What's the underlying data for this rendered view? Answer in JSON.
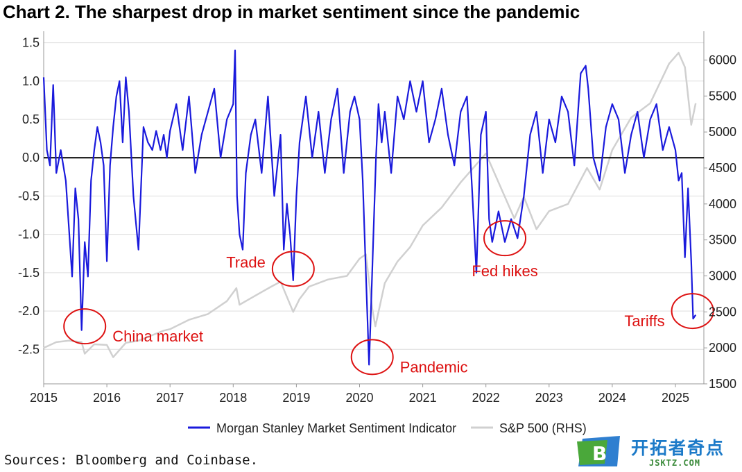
{
  "chart_data": {
    "type": "line",
    "title": "Chart 2. The sharpest drop in market sentiment since the pandemic",
    "x_ticks": [
      "2015",
      "2016",
      "2017",
      "2018",
      "2019",
      "2020",
      "2021",
      "2022",
      "2023",
      "2024",
      "2025"
    ],
    "left_axis": {
      "ticks": [
        "1.5",
        "1.0",
        "0.5",
        "0.0",
        "-0.5",
        "-1.0",
        "-1.5",
        "-2.0",
        "-2.5"
      ],
      "ylim": [
        -2.95,
        1.65
      ]
    },
    "right_axis": {
      "ticks": [
        "6000",
        "5500",
        "5000",
        "4500",
        "4000",
        "3500",
        "3000",
        "2500",
        "2000",
        "1500"
      ],
      "ylim": [
        1500,
        6400
      ]
    },
    "xlim": [
      2015.0,
      2025.45
    ],
    "grid": true,
    "legend_position": "bottom",
    "series": [
      {
        "name": "Morgan Stanley Market Sentiment Indicator",
        "axis": "left",
        "color": "#1a1adc",
        "x": [
          2015.0,
          2015.05,
          2015.1,
          2015.15,
          2015.2,
          2015.27,
          2015.35,
          2015.45,
          2015.5,
          2015.55,
          2015.6,
          2015.65,
          2015.7,
          2015.75,
          2015.8,
          2015.85,
          2015.9,
          2015.95,
          2016.0,
          2016.05,
          2016.1,
          2016.15,
          2016.2,
          2016.25,
          2016.3,
          2016.35,
          2016.42,
          2016.5,
          2016.58,
          2016.65,
          2016.72,
          2016.78,
          2016.85,
          2016.9,
          2016.95,
          2017.0,
          2017.1,
          2017.2,
          2017.3,
          2017.4,
          2017.5,
          2017.6,
          2017.7,
          2017.8,
          2017.9,
          2018.0,
          2018.03,
          2018.06,
          2018.1,
          2018.15,
          2018.2,
          2018.28,
          2018.35,
          2018.45,
          2018.55,
          2018.65,
          2018.75,
          2018.8,
          2018.85,
          2018.9,
          2018.95,
          2019.0,
          2019.05,
          2019.15,
          2019.25,
          2019.35,
          2019.45,
          2019.55,
          2019.65,
          2019.75,
          2019.85,
          2019.92,
          2020.0,
          2020.05,
          2020.1,
          2020.15,
          2020.18,
          2020.22,
          2020.26,
          2020.3,
          2020.35,
          2020.4,
          2020.5,
          2020.6,
          2020.7,
          2020.8,
          2020.9,
          2021.0,
          2021.1,
          2021.2,
          2021.3,
          2021.4,
          2021.5,
          2021.6,
          2021.7,
          2021.78,
          2021.85,
          2021.92,
          2022.0,
          2022.05,
          2022.1,
          2022.2,
          2022.3,
          2022.4,
          2022.5,
          2022.6,
          2022.7,
          2022.8,
          2022.9,
          2023.0,
          2023.1,
          2023.2,
          2023.3,
          2023.4,
          2023.5,
          2023.58,
          2023.62,
          2023.7,
          2023.8,
          2023.9,
          2024.0,
          2024.1,
          2024.2,
          2024.3,
          2024.4,
          2024.5,
          2024.6,
          2024.7,
          2024.8,
          2024.9,
          2025.0,
          2025.05,
          2025.1,
          2025.15,
          2025.2,
          2025.25,
          2025.28,
          2025.32
        ],
        "y": [
          1.05,
          0.1,
          -0.1,
          0.95,
          -0.2,
          0.1,
          -0.3,
          -1.55,
          -0.4,
          -0.8,
          -2.25,
          -1.1,
          -1.55,
          -0.3,
          0.1,
          0.4,
          0.2,
          -0.1,
          -1.35,
          -0.1,
          0.4,
          0.8,
          1.0,
          0.2,
          1.05,
          0.6,
          -0.5,
          -1.2,
          0.4,
          0.2,
          0.1,
          0.35,
          0.1,
          0.3,
          0.0,
          0.35,
          0.7,
          0.1,
          0.8,
          -0.2,
          0.3,
          0.6,
          0.9,
          0.0,
          0.5,
          0.7,
          1.4,
          -0.5,
          -1.0,
          -1.2,
          -0.2,
          0.3,
          0.5,
          -0.2,
          0.8,
          -0.5,
          0.3,
          -1.2,
          -0.6,
          -1.0,
          -1.6,
          -0.5,
          0.2,
          0.8,
          0.0,
          0.6,
          -0.2,
          0.5,
          0.9,
          -0.2,
          0.6,
          0.8,
          0.5,
          -0.3,
          -1.5,
          -2.7,
          -2.0,
          -1.0,
          0.0,
          0.7,
          0.2,
          0.6,
          -0.2,
          0.8,
          0.5,
          1.0,
          0.6,
          1.0,
          0.2,
          0.5,
          0.9,
          0.3,
          -0.1,
          0.6,
          0.8,
          -0.4,
          -1.5,
          0.3,
          0.6,
          -0.8,
          -1.1,
          -0.7,
          -1.1,
          -0.8,
          -1.05,
          -0.5,
          0.3,
          0.6,
          -0.2,
          0.5,
          0.2,
          0.8,
          0.6,
          -0.1,
          1.1,
          1.2,
          0.9,
          0.0,
          -0.3,
          0.4,
          0.7,
          0.5,
          -0.2,
          0.3,
          0.6,
          0.0,
          0.5,
          0.7,
          0.1,
          0.4,
          0.1,
          -0.3,
          -0.2,
          -1.3,
          -0.4,
          -1.35,
          -2.1,
          -2.05
        ]
      },
      {
        "name": "S&P 500 (RHS)",
        "axis": "right",
        "color": "#d0d0d0",
        "x": [
          2015.0,
          2015.2,
          2015.4,
          2015.6,
          2015.65,
          2015.8,
          2016.0,
          2016.1,
          2016.3,
          2016.5,
          2016.7,
          2016.9,
          2017.0,
          2017.3,
          2017.6,
          2017.9,
          2018.05,
          2018.1,
          2018.3,
          2018.6,
          2018.75,
          2018.95,
          2019.05,
          2019.2,
          2019.5,
          2019.8,
          2020.0,
          2020.1,
          2020.2,
          2020.25,
          2020.4,
          2020.6,
          2020.8,
          2021.0,
          2021.3,
          2021.6,
          2021.9,
          2022.0,
          2022.2,
          2022.45,
          2022.6,
          2022.8,
          2023.0,
          2023.3,
          2023.6,
          2023.8,
          2024.0,
          2024.3,
          2024.6,
          2024.9,
          2025.05,
          2025.15,
          2025.25,
          2025.32
        ],
        "y": [
          2000,
          2080,
          2100,
          2080,
          1920,
          2050,
          2040,
          1870,
          2070,
          2100,
          2170,
          2240,
          2260,
          2390,
          2470,
          2650,
          2830,
          2600,
          2700,
          2850,
          2920,
          2500,
          2680,
          2850,
          2950,
          3000,
          3240,
          3300,
          2550,
          2300,
          2900,
          3200,
          3400,
          3700,
          3950,
          4300,
          4600,
          4700,
          4300,
          3800,
          4100,
          3650,
          3900,
          4000,
          4500,
          4200,
          4750,
          5200,
          5400,
          5950,
          6100,
          5900,
          5100,
          5400
        ]
      }
    ],
    "annotations": [
      {
        "label": "China market",
        "x": 2015.65,
        "y": -2.2
      },
      {
        "label": "Trade",
        "x": 2018.95,
        "y": -1.45
      },
      {
        "label": "Pandemic",
        "x": 2020.2,
        "y": -2.6
      },
      {
        "label": "Fed hikes",
        "x": 2022.3,
        "y": -1.05
      },
      {
        "label": "Tariffs",
        "x": 2025.27,
        "y": -2.0
      }
    ]
  },
  "source": "Sources: Bloomberg and Coinbase.",
  "watermark": {
    "title": "开拓者奇点",
    "subtitle": "JSKTZ.COM",
    "badge_letter": "B"
  }
}
